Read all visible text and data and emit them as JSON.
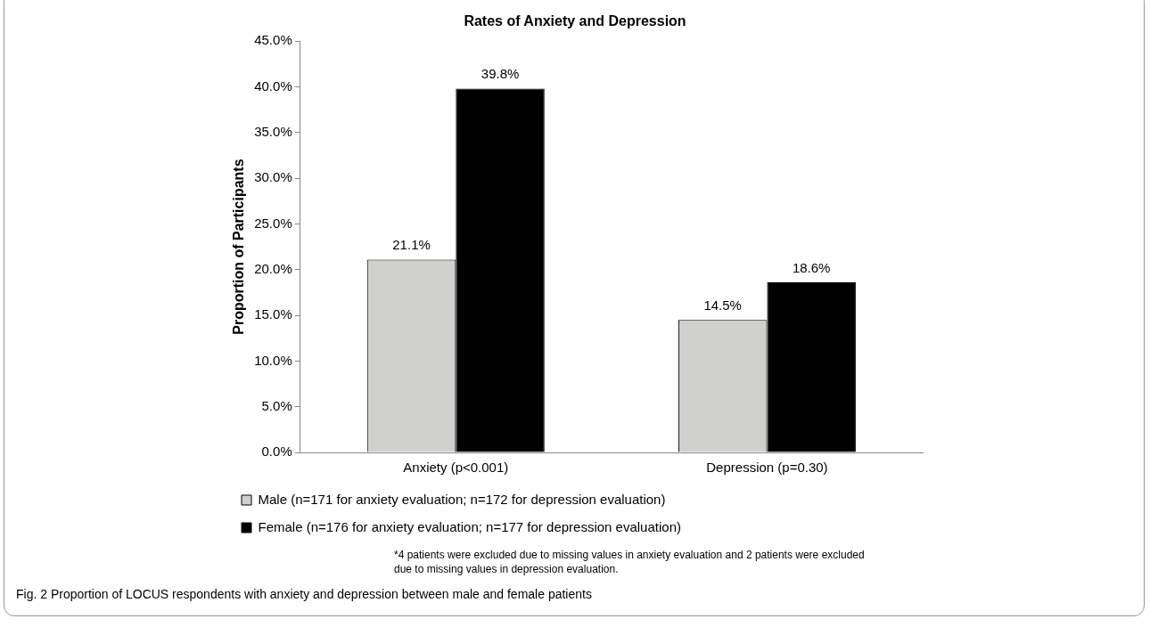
{
  "chart_data": {
    "type": "bar",
    "title": "Rates of Anxiety and Depression",
    "ylabel": "Proportion of Participants",
    "categories": [
      "Anxiety (p<0.001)",
      "Depression (p=0.30)"
    ],
    "series": [
      {
        "name": "Male (n=171 for anxiety evaluation; n=172 for depression evaluation)",
        "color": "#d0d0ce",
        "values": [
          21.1,
          14.5
        ],
        "value_labels": [
          "21.1%",
          "14.5%"
        ]
      },
      {
        "name": "Female (n=176 for anxiety evaluation; n=177 for depression evaluation)",
        "color": "#000000",
        "values": [
          39.8,
          18.6
        ],
        "value_labels": [
          "39.8%",
          "18.6%"
        ]
      }
    ],
    "ylim": [
      0,
      45
    ],
    "yticks": [
      {
        "value": 0,
        "label": "0.0%"
      },
      {
        "value": 5,
        "label": "5.0%"
      },
      {
        "value": 10,
        "label": "10.0%"
      },
      {
        "value": 15,
        "label": "15.0%"
      },
      {
        "value": 20,
        "label": "20.0%"
      },
      {
        "value": 25,
        "label": "25.0%"
      },
      {
        "value": 30,
        "label": "30.0%"
      },
      {
        "value": 35,
        "label": "35.0%"
      },
      {
        "value": 40,
        "label": "40.0%"
      },
      {
        "value": 45,
        "label": "45.0%"
      }
    ],
    "grid": false,
    "legend": "bottom",
    "annotations": [
      "*4 patients were excluded due to missing values in anxiety evaluation and 2 patients were excluded due to missing values in depression evaluation.",
      "Fig. 2  Proportion of LOCUS respondents with anxiety and depression between male and female patients"
    ]
  }
}
